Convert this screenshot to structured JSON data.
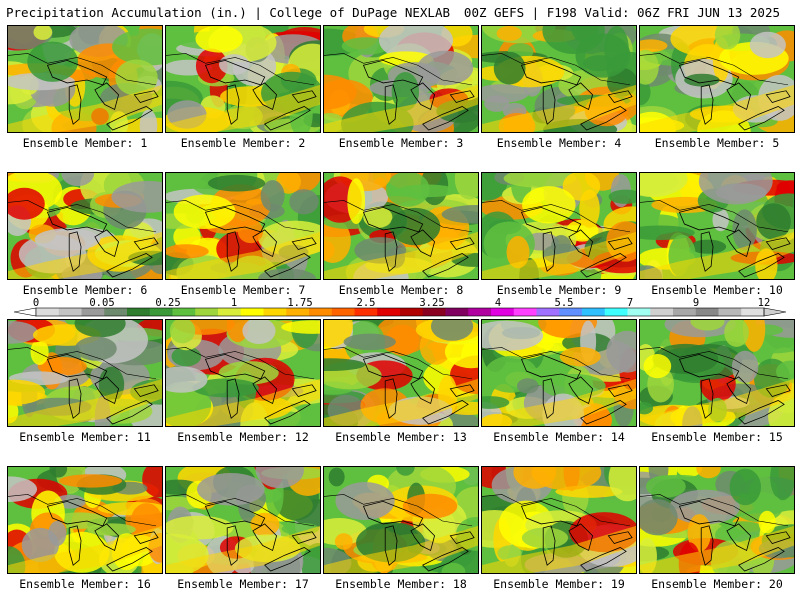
{
  "header": {
    "title": "Precipitation Accumulation (in.) | College of DuPage NEXLAB",
    "run_info": "00Z GEFS | F198 Valid: 06Z FRI JUN 13 2025"
  },
  "panels": [
    {
      "label": "Ensemble Member: 1"
    },
    {
      "label": "Ensemble Member: 2"
    },
    {
      "label": "Ensemble Member: 3"
    },
    {
      "label": "Ensemble Member: 4"
    },
    {
      "label": "Ensemble Member: 5"
    },
    {
      "label": "Ensemble Member: 6"
    },
    {
      "label": "Ensemble Member: 7"
    },
    {
      "label": "Ensemble Member: 8"
    },
    {
      "label": "Ensemble Member: 9"
    },
    {
      "label": "Ensemble Member: 10"
    },
    {
      "label": "Ensemble Member: 11"
    },
    {
      "label": "Ensemble Member: 12"
    },
    {
      "label": "Ensemble Member: 13"
    },
    {
      "label": "Ensemble Member: 14"
    },
    {
      "label": "Ensemble Member: 15"
    },
    {
      "label": "Ensemble Member: 16"
    },
    {
      "label": "Ensemble Member: 17"
    },
    {
      "label": "Ensemble Member: 18"
    },
    {
      "label": "Ensemble Member: 19"
    },
    {
      "label": "Ensemble Member: 20"
    }
  ],
  "colorbar": {
    "tick_labels": [
      "0",
      "0.05",
      "0.25",
      "1",
      "1.75",
      "2.5",
      "3.25",
      "4",
      "5.5",
      "7",
      "9",
      "12"
    ],
    "colors": [
      "#dcdcdc",
      "#c4c4c4",
      "#9a9a9a",
      "#6e8a6e",
      "#2f7d2f",
      "#3a9a3a",
      "#5fbf3f",
      "#9ed63c",
      "#d9ee3a",
      "#ffff00",
      "#ffd700",
      "#ffb000",
      "#ff8c00",
      "#ff6400",
      "#ff3000",
      "#e00000",
      "#b00000",
      "#8a0020",
      "#800060",
      "#b000a0",
      "#e000e0",
      "#ff40ff",
      "#a070ff",
      "#6090ff",
      "#30c0ff",
      "#40ffff",
      "#a0fff0",
      "#d0d0d0",
      "#a8a8a8",
      "#888888",
      "#b8b8b8",
      "#e0e0e0"
    ]
  }
}
